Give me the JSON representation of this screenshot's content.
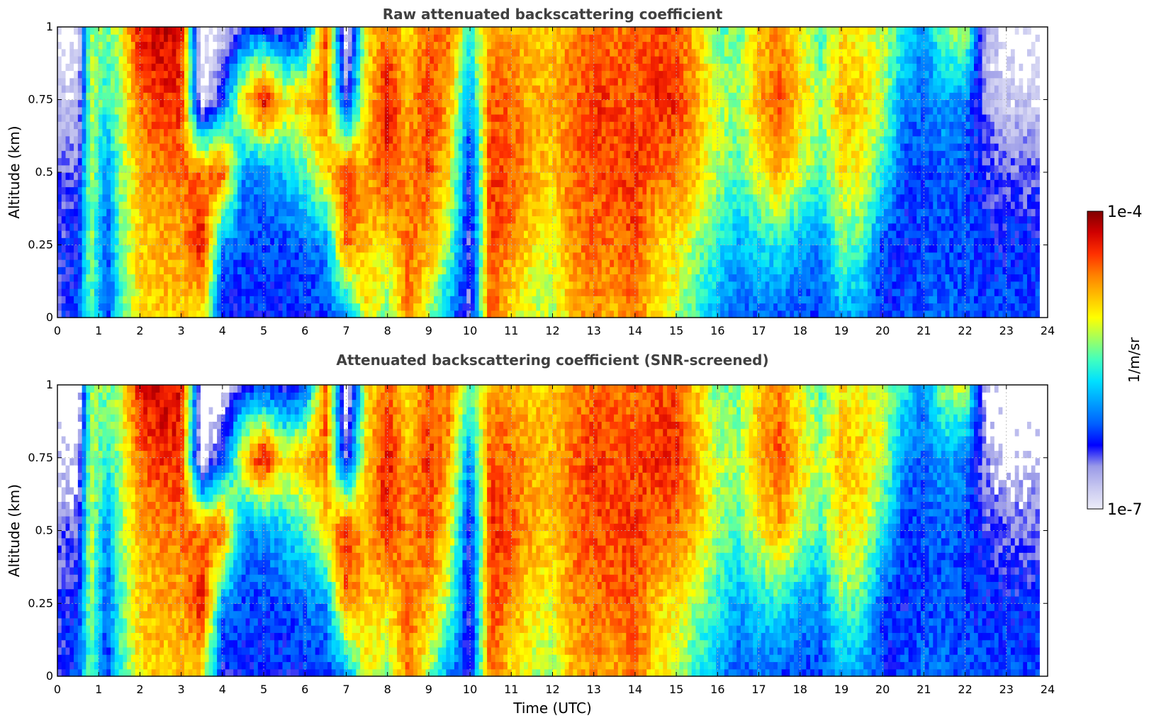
{
  "colors": {
    "colormap": [
      "#ececf8",
      "#c8c8f0",
      "#9a9ae8",
      "#0000ff",
      "#0060ff",
      "#00a0ff",
      "#00e0ff",
      "#40ffc0",
      "#a0ff60",
      "#ffff00",
      "#ffc000",
      "#ff8000",
      "#ff3000",
      "#d00000",
      "#800000"
    ],
    "clipped_high": "#000000",
    "screened_out": "#ffffff",
    "grid": "#b0b0b0"
  },
  "colorbar": {
    "max_label": "1e-4",
    "min_label": "1e-7",
    "unit_label": "1/m/sr",
    "range": [
      1e-07,
      0.0001
    ],
    "scale": "log"
  },
  "chart_data": [
    {
      "type": "heatmap",
      "title": "Raw attenuated backscattering coefficient",
      "xlabel": "",
      "ylabel": "Altitude (km)",
      "xlim": [
        0,
        24
      ],
      "ylim": [
        0,
        1
      ],
      "xticks": [
        0,
        1,
        2,
        3,
        4,
        5,
        6,
        7,
        8,
        9,
        10,
        11,
        12,
        13,
        14,
        15,
        16,
        17,
        18,
        19,
        20,
        21,
        22,
        23,
        24
      ],
      "xtick_labels": [
        "0",
        "1",
        "2",
        "3",
        "4",
        "5",
        "6",
        "7",
        "8",
        "9",
        "10",
        "11",
        "12",
        "13",
        "14",
        "15",
        "16",
        "17",
        "18",
        "19",
        "20",
        "21",
        "22",
        "23",
        "24"
      ],
      "yticks": [
        0,
        0.25,
        0.5,
        0.75,
        1
      ],
      "ytick_labels": [
        "0",
        "0.25",
        "0.5",
        "0.75",
        "1"
      ],
      "grid": true,
      "data_end_time": 23.8,
      "log10_backscatter_approx": {
        "time_utc": [
          0,
          0.5,
          0.8,
          1.2,
          1.5,
          2.0,
          2.5,
          3.0,
          3.5,
          4.0,
          4.5,
          5.0,
          5.5,
          6.0,
          6.5,
          7.0,
          7.5,
          8.0,
          8.5,
          9.0,
          9.5,
          10.0,
          10.5,
          11.0,
          11.5,
          12.0,
          12.5,
          13.0,
          13.5,
          14.0,
          14.5,
          15.0,
          15.5,
          16.0,
          16.5,
          17.0,
          17.5,
          18.0,
          18.5,
          19.0,
          19.5,
          20.0,
          20.5,
          21.0,
          21.5,
          22.0,
          22.5,
          23.0,
          23.5
        ],
        "altitude_km": [
          0.0,
          0.25,
          0.5,
          0.75,
          1.0
        ],
        "values": [
          [
            -6.4,
            -6.4,
            -6.5,
            -6.8,
            -7.0
          ],
          [
            -6.2,
            -6.3,
            -6.5,
            -6.8,
            -7.0
          ],
          [
            -5.4,
            -5.3,
            -5.2,
            -5.2,
            -5.3
          ],
          [
            -6.3,
            -6.2,
            -6.0,
            -5.6,
            -5.4
          ],
          [
            -5.6,
            -5.5,
            -5.4,
            -5.3,
            -5.2
          ],
          [
            -5.0,
            -4.9,
            -4.8,
            -4.6,
            -4.3
          ],
          [
            -4.9,
            -4.8,
            -4.7,
            -4.4,
            -4.2
          ],
          [
            -4.9,
            -4.8,
            -4.6,
            -4.4,
            -4.3
          ],
          [
            -5.0,
            -4.3,
            -4.6,
            -7.0,
            -7.0
          ],
          [
            -6.4,
            -6.0,
            -4.5,
            -6.2,
            -7.0
          ],
          [
            -6.3,
            -6.2,
            -6.0,
            -5.0,
            -6.3
          ],
          [
            -6.3,
            -6.2,
            -6.0,
            -4.2,
            -6.3
          ],
          [
            -6.3,
            -6.2,
            -5.8,
            -5.0,
            -6.5
          ],
          [
            -6.3,
            -6.1,
            -5.5,
            -4.8,
            -6.3
          ],
          [
            -6.2,
            -6.0,
            -5.0,
            -4.6,
            -4.5
          ],
          [
            -6.0,
            -4.6,
            -4.4,
            -6.5,
            -7.0
          ],
          [
            -5.0,
            -4.9,
            -4.8,
            -4.9,
            -5.0
          ],
          [
            -5.4,
            -5.0,
            -4.4,
            -4.3,
            -4.6
          ],
          [
            -4.6,
            -4.6,
            -4.7,
            -4.8,
            -5.0
          ],
          [
            -5.3,
            -4.8,
            -4.5,
            -4.4,
            -4.6
          ],
          [
            -6.0,
            -5.3,
            -5.0,
            -4.8,
            -4.6
          ],
          [
            -6.5,
            -6.5,
            -6.4,
            -6.0,
            -5.5
          ],
          [
            -4.5,
            -4.5,
            -4.4,
            -4.5,
            -4.8
          ],
          [
            -5.0,
            -4.7,
            -4.5,
            -4.6,
            -4.8
          ],
          [
            -5.2,
            -5.0,
            -4.8,
            -4.8,
            -4.9
          ],
          [
            -5.3,
            -5.1,
            -4.9,
            -4.8,
            -4.9
          ],
          [
            -4.8,
            -4.7,
            -4.6,
            -4.6,
            -4.7
          ],
          [
            -4.7,
            -4.6,
            -4.5,
            -4.4,
            -4.6
          ],
          [
            -4.8,
            -4.6,
            -4.5,
            -4.5,
            -4.6
          ],
          [
            -4.6,
            -4.5,
            -4.4,
            -4.5,
            -4.6
          ],
          [
            -5.0,
            -4.9,
            -4.6,
            -4.4,
            -4.5
          ],
          [
            -5.2,
            -5.0,
            -4.6,
            -4.4,
            -4.5
          ],
          [
            -5.6,
            -5.3,
            -4.9,
            -4.8,
            -4.9
          ],
          [
            -5.9,
            -5.6,
            -5.3,
            -5.2,
            -5.4
          ],
          [
            -6.2,
            -5.9,
            -5.5,
            -5.3,
            -5.4
          ],
          [
            -6.1,
            -5.7,
            -5.1,
            -4.8,
            -4.9
          ],
          [
            -6.2,
            -5.6,
            -4.8,
            -4.5,
            -4.7
          ],
          [
            -6.2,
            -5.9,
            -5.2,
            -4.9,
            -5.1
          ],
          [
            -6.2,
            -6.0,
            -5.5,
            -5.3,
            -5.5
          ],
          [
            -5.9,
            -5.4,
            -5.0,
            -4.8,
            -5.0
          ],
          [
            -6.0,
            -5.5,
            -5.1,
            -4.9,
            -5.1
          ],
          [
            -6.3,
            -6.2,
            -5.6,
            -5.2,
            -5.2
          ],
          [
            -6.2,
            -6.3,
            -6.2,
            -6.0,
            -5.6
          ],
          [
            -6.1,
            -6.2,
            -6.2,
            -6.1,
            -6.0
          ],
          [
            -6.1,
            -6.2,
            -6.1,
            -5.9,
            -5.3
          ],
          [
            -6.2,
            -6.2,
            -6.2,
            -6.0,
            -5.2
          ],
          [
            -6.2,
            -6.3,
            -6.4,
            -6.6,
            -6.8
          ],
          [
            -6.2,
            -6.3,
            -6.5,
            -6.8,
            -7.0
          ],
          [
            -6.2,
            -6.3,
            -6.5,
            -6.8,
            -7.0
          ]
        ]
      }
    },
    {
      "type": "heatmap",
      "title": "Attenuated backscattering coefficient (SNR-screened)",
      "xlabel": "Time (UTC)",
      "ylabel": "Altitude (km)",
      "xlim": [
        0,
        24
      ],
      "ylim": [
        0,
        1
      ],
      "xticks": [
        0,
        1,
        2,
        3,
        4,
        5,
        6,
        7,
        8,
        9,
        10,
        11,
        12,
        13,
        14,
        15,
        16,
        17,
        18,
        19,
        20,
        21,
        22,
        23,
        24
      ],
      "xtick_labels": [
        "0",
        "1",
        "2",
        "3",
        "4",
        "5",
        "6",
        "7",
        "8",
        "9",
        "10",
        "11",
        "12",
        "13",
        "14",
        "15",
        "16",
        "17",
        "18",
        "19",
        "20",
        "21",
        "22",
        "23",
        "24"
      ],
      "yticks": [
        0,
        0.25,
        0.5,
        0.75,
        1
      ],
      "ytick_labels": [
        "0",
        "0.25",
        "0.5",
        "0.75",
        "1"
      ],
      "grid": true,
      "data_end_time": 23.8,
      "note_source": "same field as upper panel; values above 1e-4 shown black, low-SNR areas blank"
    }
  ]
}
